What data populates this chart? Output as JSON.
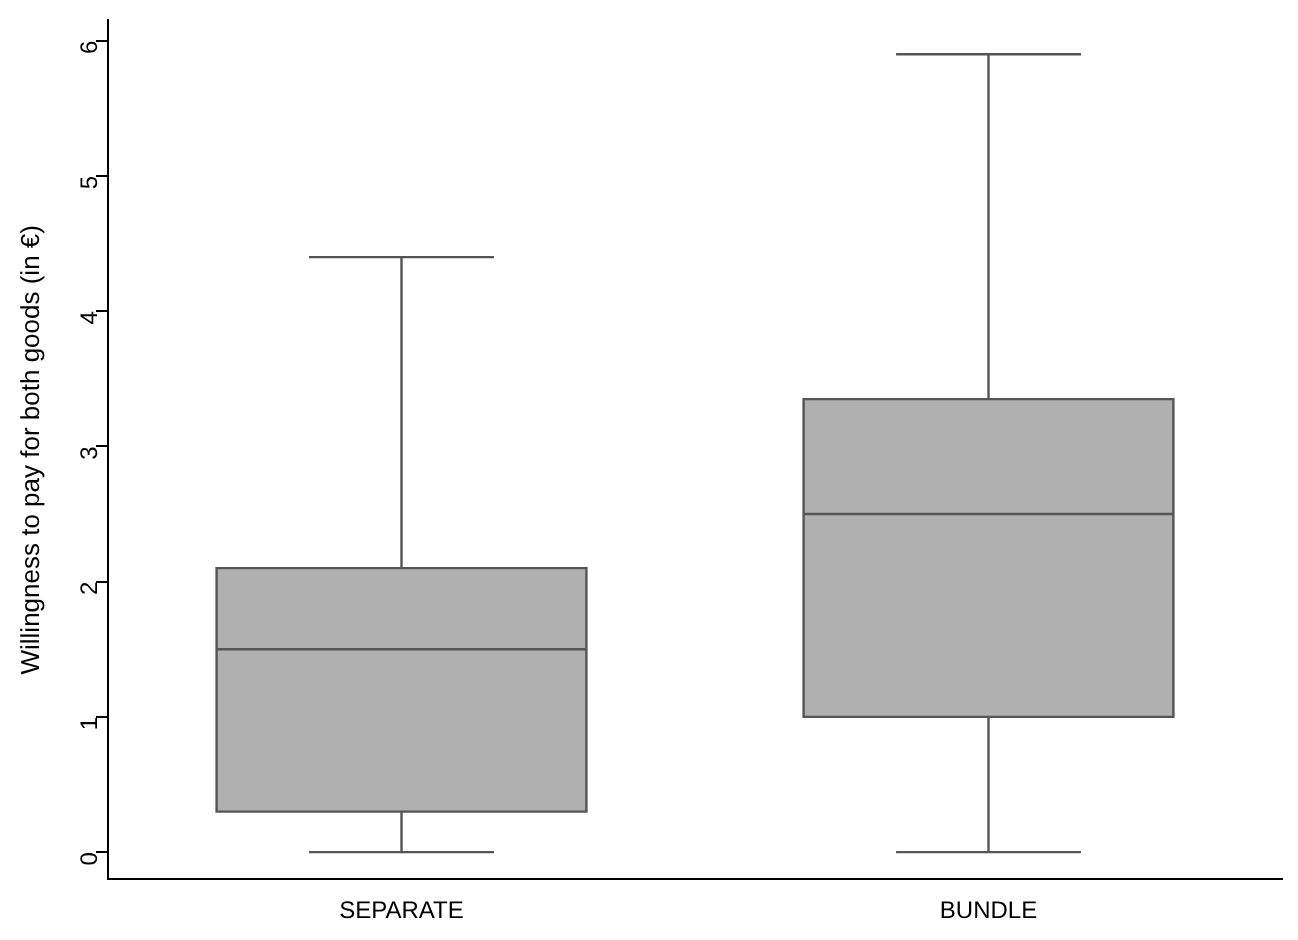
{
  "chart_data": {
    "type": "box",
    "ylabel": "Willingness to pay for both goods (in €)",
    "categories": [
      "SEPARATE",
      "BUNDLE"
    ],
    "boxes": [
      {
        "low": 0,
        "q1": 0.3,
        "median": 1.5,
        "q3": 2.1,
        "high": 4.4
      },
      {
        "low": 0,
        "q1": 1.0,
        "median": 2.5,
        "q3": 3.35,
        "high": 5.9
      }
    ],
    "color": "#b0b0b0",
    "ylim": [
      -0.2,
      6.15
    ],
    "yticks": [
      0,
      1,
      2,
      3,
      4,
      5,
      6
    ],
    "grid": false,
    "legend": false
  }
}
